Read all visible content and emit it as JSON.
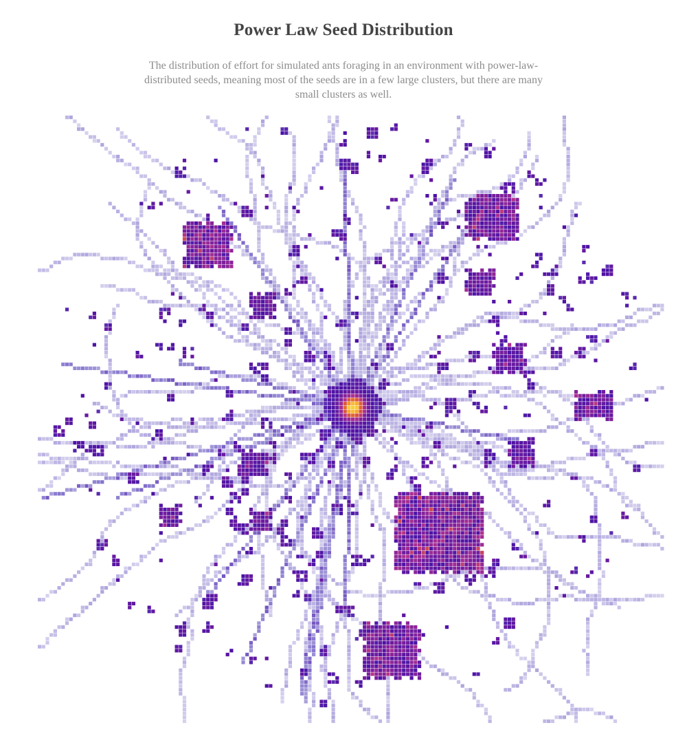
{
  "header": {
    "title": "Power Law Seed Distribution",
    "subtitle": "The distribution of effort for simulated ants foraging in an environment with power-law-distributed seeds, meaning most of the seeds are in a few large clusters, but there are many small clusters as well."
  },
  "chart_data": {
    "type": "heatmap",
    "title": "Power Law Seed Distribution",
    "xlabel": "",
    "ylabel": "",
    "axes_visible": false,
    "grid": false,
    "legend": "none",
    "colormap": {
      "name": "plasma",
      "stops": [
        "#f3f1fa",
        "#c9c2e8",
        "#8d7fd0",
        "#4b12a6",
        "#7b1f9e",
        "#b0308f",
        "#d9523b",
        "#f58a1f",
        "#f8d03a"
      ]
    },
    "grid_size": [
      160,
      155
    ],
    "nest": {
      "col": 80,
      "row": 74,
      "peak_value": 1.0
    },
    "large_clusters": [
      {
        "col": 43,
        "row": 33,
        "cols": 13,
        "rows": 12,
        "intensity": 0.55
      },
      {
        "col": 116,
        "row": 26,
        "cols": 14,
        "rows": 12,
        "intensity": 0.5
      },
      {
        "col": 102,
        "row": 106,
        "cols": 23,
        "rows": 21,
        "intensity": 0.55
      },
      {
        "col": 90,
        "row": 136,
        "cols": 15,
        "rows": 15,
        "intensity": 0.5
      },
      {
        "col": 120,
        "row": 62,
        "cols": 9,
        "rows": 8,
        "intensity": 0.45
      },
      {
        "col": 142,
        "row": 74,
        "cols": 10,
        "rows": 8,
        "intensity": 0.5
      },
      {
        "col": 57,
        "row": 48,
        "cols": 7,
        "rows": 7,
        "intensity": 0.45
      },
      {
        "col": 55,
        "row": 88,
        "cols": 8,
        "rows": 7,
        "intensity": 0.45
      },
      {
        "col": 123,
        "row": 86,
        "cols": 7,
        "rows": 7,
        "intensity": 0.45
      },
      {
        "col": 113,
        "row": 42,
        "cols": 8,
        "rows": 7,
        "intensity": 0.45
      },
      {
        "col": 34,
        "row": 102,
        "cols": 6,
        "rows": 6,
        "intensity": 0.45
      },
      {
        "col": 57,
        "row": 103,
        "cols": 6,
        "rows": 6,
        "intensity": 0.45
      }
    ],
    "small_cluster_count": 380,
    "trail_count": 60
  }
}
